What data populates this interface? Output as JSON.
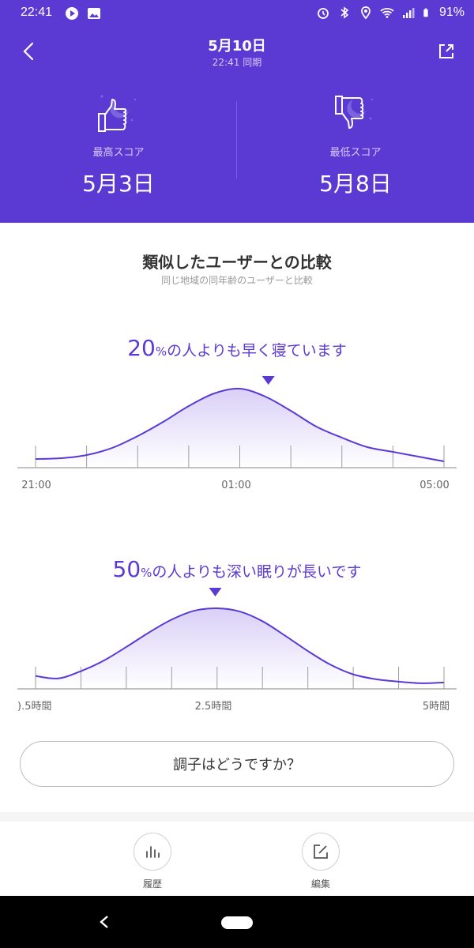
{
  "status": {
    "time": "22:41",
    "battery": "91%",
    "icons_left": [
      "play-circle-icon",
      "image-icon"
    ],
    "icons_right": [
      "alarm-icon",
      "bluetooth-icon",
      "location-icon",
      "wifi-icon",
      "signal-icon",
      "battery-icon"
    ]
  },
  "header": {
    "title": "5月10日",
    "subtitle": "22:41 同期",
    "best": {
      "label": "最高スコア",
      "date": "5月3日"
    },
    "worst": {
      "label": "最低スコア",
      "date": "5月8日"
    }
  },
  "comparison": {
    "title": "類似したユーザーとの比較",
    "subtitle": "同じ地域の同年齢のユーザーと比較"
  },
  "chart1": {
    "value": "20",
    "unit": "%",
    "text": "の人よりも早く寝ています"
  },
  "chart2": {
    "value": "50",
    "unit": "%",
    "text": "の人よりも深い眠りが長いです"
  },
  "chart_data": [
    {
      "type": "area",
      "title": "20%の人よりも早く寝ています",
      "tick_labels": [
        "21:00",
        "01:00",
        "05:00"
      ],
      "marker_percentile": 20,
      "x": [
        "21:00",
        "21:30",
        "22:00",
        "22:30",
        "23:00",
        "23:30",
        "00:00",
        "00:30",
        "01:00",
        "01:30",
        "02:00",
        "02:30",
        "03:00",
        "03:30",
        "04:00",
        "04:30",
        "05:00"
      ],
      "values": [
        0.11,
        0.12,
        0.16,
        0.25,
        0.4,
        0.58,
        0.78,
        0.94,
        1.0,
        0.9,
        0.72,
        0.52,
        0.38,
        0.26,
        0.2,
        0.14,
        0.08
      ],
      "ylim": [
        0,
        1
      ]
    },
    {
      "type": "area",
      "title": "50%の人よりも深い眠りが長いです",
      "tick_labels": [
        ").5時間",
        "2.5時間",
        "5時間"
      ],
      "marker_percentile": 50,
      "x": [
        0.5,
        0.75,
        1.0,
        1.25,
        1.5,
        1.75,
        2.0,
        2.25,
        2.5,
        2.75,
        3.0,
        3.25,
        3.5,
        3.75,
        4.0,
        4.25,
        4.5,
        4.75,
        5.0
      ],
      "values": [
        0.16,
        0.13,
        0.22,
        0.35,
        0.52,
        0.7,
        0.86,
        0.97,
        1.0,
        0.96,
        0.84,
        0.66,
        0.47,
        0.3,
        0.18,
        0.12,
        0.09,
        0.07,
        0.08
      ],
      "ylim": [
        0,
        1
      ]
    }
  ],
  "feedback": {
    "label": "調子はどうですか？"
  },
  "nav": {
    "history": "履歴",
    "edit": "編集"
  }
}
